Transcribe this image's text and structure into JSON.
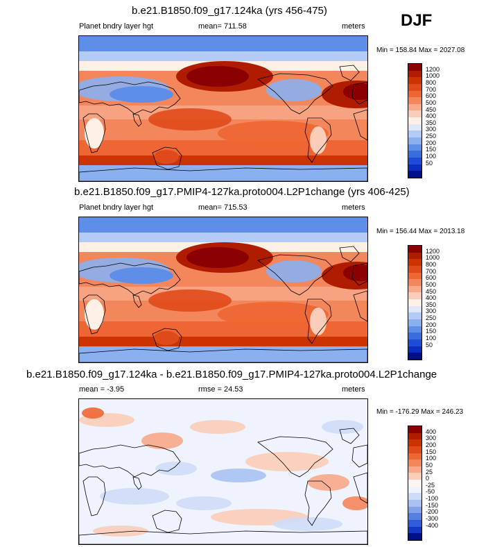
{
  "season": "DJF",
  "panels": [
    {
      "title": "b.e21.B1850.f09_g17.124ka (yrs 456-475)",
      "left_label": "Planet bndry layer hgt",
      "center_label": "mean= 711.58",
      "right_label": "meters",
      "minmax": "Min = 158.84 Max = 2027.08",
      "colorbar_labels": [
        "1200",
        "1000",
        "800",
        "700",
        "600",
        "500",
        "450",
        "400",
        "350",
        "300",
        "250",
        "200",
        "150",
        "100",
        "50"
      ],
      "colors": [
        "#8b0000",
        "#b01c00",
        "#cc3300",
        "#e04a1a",
        "#ee6633",
        "#f4865c",
        "#f8a98a",
        "#fbcdb8",
        "#fff0e6",
        "#dde8fb",
        "#b4cbf5",
        "#8ab0f0",
        "#5e8ee8",
        "#3a6ce0",
        "#1e4cd8",
        "#0a2ec0",
        "#00108a"
      ],
      "field": "pbl"
    },
    {
      "title": "b.e21.B1850.f09_g17.PMIP4-127ka.proto004.L2P1change (yrs 406-425)",
      "left_label": "Planet bndry layer hgt",
      "center_label": "mean= 715.53",
      "right_label": "meters",
      "minmax": "Min = 156.44 Max = 2013.18",
      "colorbar_labels": [
        "1200",
        "1000",
        "800",
        "700",
        "600",
        "500",
        "450",
        "400",
        "350",
        "300",
        "250",
        "200",
        "150",
        "100",
        "50"
      ],
      "colors": [
        "#8b0000",
        "#b01c00",
        "#cc3300",
        "#e04a1a",
        "#ee6633",
        "#f4865c",
        "#f8a98a",
        "#fbcdb8",
        "#fff0e6",
        "#dde8fb",
        "#b4cbf5",
        "#8ab0f0",
        "#5e8ee8",
        "#3a6ce0",
        "#1e4cd8",
        "#0a2ec0",
        "#00108a"
      ],
      "field": "pbl"
    },
    {
      "title": "b.e21.B1850.f09_g17.124ka - b.e21.B1850.f09_g17.PMIP4-127ka.proto004.L2P1change",
      "left_label": "mean =  -3.95",
      "center_label": "rmse =  24.53",
      "right_label": "meters",
      "minmax": "Min = -176.29 Max = 246.23",
      "colorbar_labels": [
        "400",
        "300",
        "200",
        "150",
        "100",
        "50",
        "25",
        "0",
        "-25",
        "-50",
        "-100",
        "-150",
        "-200",
        "-300",
        "-400"
      ],
      "colors": [
        "#8b0000",
        "#b01c00",
        "#cc3300",
        "#e04a1a",
        "#ee6633",
        "#f4865c",
        "#f8a98a",
        "#fbcdb8",
        "#fff5ee",
        "#eef3fd",
        "#cfdcf8",
        "#a9c2f2",
        "#7fa2ea",
        "#5580e2",
        "#2f5cd8",
        "#1436c4",
        "#00108a"
      ],
      "field": "diff"
    }
  ]
}
